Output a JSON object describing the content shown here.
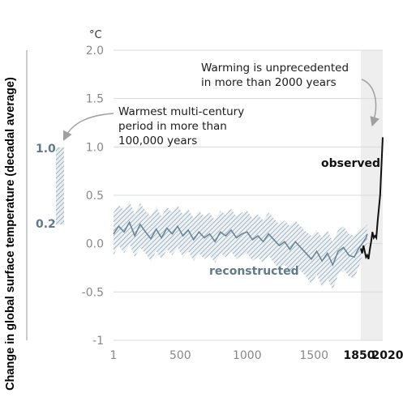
{
  "chart_data": {
    "type": "line",
    "ylabel": "Change in global surface temperature (decadal average)",
    "unit": "°C",
    "ylim": [
      -1,
      2
    ],
    "y_ticks": [
      "2.0",
      "1.5",
      "1.0",
      "0.5",
      "0.0",
      "-0.5",
      "-1"
    ],
    "y_tick_values": [
      2.0,
      1.5,
      1.0,
      0.5,
      0.0,
      -0.5,
      -1.0
    ],
    "x_ticks": [
      "1",
      "500",
      "1000",
      "1500",
      "1850",
      "2020"
    ],
    "x_tick_values": [
      1,
      500,
      1000,
      1500,
      1850,
      2020
    ],
    "grid": true,
    "shaded_period": [
      1850,
      2020
    ],
    "series": [
      {
        "name": "reconstructed",
        "color": "#6a8696",
        "band": "hatched uncertainty range",
        "x": [
          1,
          40,
          80,
          120,
          160,
          200,
          240,
          280,
          320,
          360,
          400,
          440,
          480,
          520,
          560,
          600,
          640,
          680,
          720,
          760,
          800,
          840,
          880,
          920,
          960,
          1000,
          1040,
          1080,
          1120,
          1160,
          1200,
          1240,
          1280,
          1320,
          1360,
          1400,
          1440,
          1480,
          1520,
          1560,
          1600,
          1640,
          1680,
          1720,
          1760,
          1800,
          1830,
          1850,
          1870,
          1890,
          1900
        ],
        "values": [
          0.1,
          0.18,
          0.12,
          0.22,
          0.08,
          0.2,
          0.12,
          0.05,
          0.15,
          0.06,
          0.16,
          0.1,
          0.18,
          0.08,
          0.14,
          0.04,
          0.12,
          0.06,
          0.1,
          0.02,
          0.12,
          0.08,
          0.14,
          0.06,
          0.1,
          0.12,
          0.04,
          0.08,
          0.02,
          0.1,
          0.04,
          -0.02,
          0.02,
          -0.06,
          0.02,
          -0.04,
          -0.1,
          -0.16,
          -0.08,
          -0.18,
          -0.1,
          -0.22,
          -0.08,
          -0.04,
          -0.12,
          -0.14,
          -0.06,
          -0.02,
          0.02,
          0.06,
          0.1
        ],
        "lower": [
          -0.12,
          -0.02,
          -0.1,
          0.0,
          -0.14,
          -0.04,
          -0.1,
          -0.18,
          -0.08,
          -0.16,
          -0.06,
          -0.12,
          -0.04,
          -0.14,
          -0.08,
          -0.18,
          -0.1,
          -0.16,
          -0.12,
          -0.2,
          -0.1,
          -0.14,
          -0.08,
          -0.16,
          -0.12,
          -0.1,
          -0.18,
          -0.14,
          -0.2,
          -0.12,
          -0.2,
          -0.26,
          -0.22,
          -0.3,
          -0.22,
          -0.28,
          -0.34,
          -0.42,
          -0.32,
          -0.45,
          -0.36,
          -0.48,
          -0.32,
          -0.26,
          -0.34,
          -0.36,
          -0.26,
          -0.18,
          -0.1,
          -0.04,
          0.02
        ],
        "upper": [
          0.32,
          0.4,
          0.34,
          0.44,
          0.3,
          0.42,
          0.34,
          0.28,
          0.38,
          0.28,
          0.38,
          0.32,
          0.4,
          0.3,
          0.36,
          0.26,
          0.34,
          0.28,
          0.32,
          0.24,
          0.34,
          0.3,
          0.36,
          0.28,
          0.32,
          0.34,
          0.26,
          0.3,
          0.24,
          0.32,
          0.26,
          0.2,
          0.24,
          0.18,
          0.24,
          0.18,
          0.12,
          0.08,
          0.14,
          0.06,
          0.14,
          0.02,
          0.14,
          0.18,
          0.1,
          0.08,
          0.14,
          0.16,
          0.16,
          0.18,
          0.2
        ]
      },
      {
        "name": "observed",
        "color": "#111111",
        "x": [
          1850,
          1860,
          1870,
          1880,
          1890,
          1900,
          1910,
          1920,
          1930,
          1940,
          1950,
          1960,
          1970,
          1980,
          1990,
          2000,
          2010,
          2020
        ],
        "values": [
          -0.05,
          -0.1,
          -0.02,
          -0.08,
          -0.14,
          -0.12,
          -0.16,
          -0.06,
          0.02,
          0.12,
          0.06,
          0.08,
          0.06,
          0.22,
          0.36,
          0.5,
          0.8,
          1.1
        ]
      }
    ],
    "inset": {
      "label_top": "1.0",
      "label_bottom": "0.2",
      "top_value": 1.0,
      "bottom_value": 0.2
    },
    "annotations": [
      {
        "name": "warming",
        "lines": [
          "Warming is unprecedented",
          "in more than 2000 years"
        ]
      },
      {
        "name": "warmest",
        "lines": [
          "Warmest multi-century",
          "period in more than",
          "100,000 years"
        ]
      }
    ]
  },
  "colors": {
    "grid": "#d9d9d9",
    "shade": "#eeeeee",
    "hatch": "#a3b6c4",
    "inset": "#a3b6c4",
    "arrow": "#a0a0a0"
  }
}
